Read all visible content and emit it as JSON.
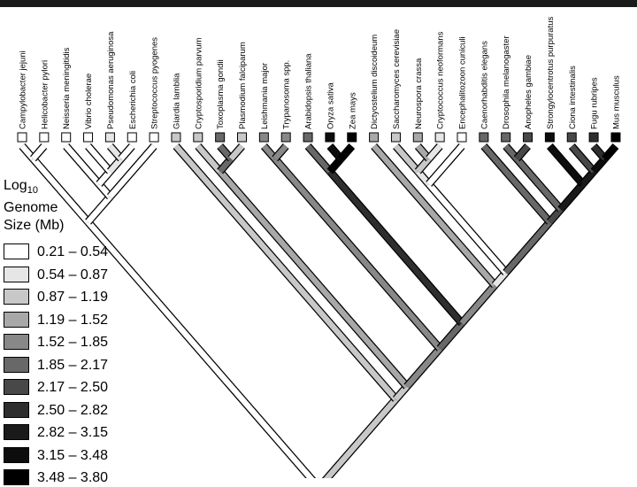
{
  "legend": {
    "title_main": "Log",
    "title_sub": "10",
    "title_line2": "Genome",
    "title_line3": "Size (Mb)",
    "bins": [
      {
        "label": "0.21 – 0.54",
        "color": "#ffffff"
      },
      {
        "label": "0.54 – 0.87",
        "color": "#e6e6e6"
      },
      {
        "label": "0.87 – 1.19",
        "color": "#c8c8c8"
      },
      {
        "label": "1.19 – 1.52",
        "color": "#a8a8a8"
      },
      {
        "label": "1.52 – 1.85",
        "color": "#888888"
      },
      {
        "label": "1.85 – 2.17",
        "color": "#686868"
      },
      {
        "label": "2.17 – 2.50",
        "color": "#484848"
      },
      {
        "label": "2.50 – 2.82",
        "color": "#2e2e2e"
      },
      {
        "label": "2.82 – 3.15",
        "color": "#1a1a1a"
      },
      {
        "label": "3.15 – 3.48",
        "color": "#0d0d0d"
      },
      {
        "label": "3.48 – 3.80",
        "color": "#000000"
      }
    ]
  },
  "taxa": [
    {
      "name": "Campylobacter jejuni",
      "bin": 0
    },
    {
      "name": "Helicobacter pylori",
      "bin": 0
    },
    {
      "name": "Neisseria meningitidis",
      "bin": 0
    },
    {
      "name": "Vibrio cholerae",
      "bin": 0
    },
    {
      "name": "Pseudomonas aeruginosa",
      "bin": 1
    },
    {
      "name": "Escherichia coli",
      "bin": 0
    },
    {
      "name": "Streptococcus pyogenes",
      "bin": 0
    },
    {
      "name": "Giardia lamblia",
      "bin": 2
    },
    {
      "name": "Cryptosporidium parvum",
      "bin": 2
    },
    {
      "name": "Toxoplasma gondii",
      "bin": 5
    },
    {
      "name": "Plasmodium falciparum",
      "bin": 2
    },
    {
      "name": "Leishmania major",
      "bin": 4
    },
    {
      "name": "Trypanosoma spp.",
      "bin": 4
    },
    {
      "name": "Arabidopsis thaliana",
      "bin": 5
    },
    {
      "name": "Oryza sativa",
      "bin": 9
    },
    {
      "name": "Zea mays",
      "bin": 10
    },
    {
      "name": "Dictyostelium discoideum",
      "bin": 3
    },
    {
      "name": "Saccharomyces cerevisiae",
      "bin": 2
    },
    {
      "name": "Neurospora crassa",
      "bin": 3
    },
    {
      "name": "Cryptococcus neoformans",
      "bin": 1
    },
    {
      "name": "Encephalitozoon cuniculi",
      "bin": 0
    },
    {
      "name": "Caenorhabditis elegans",
      "bin": 5
    },
    {
      "name": "Drosophila melanogaster",
      "bin": 5
    },
    {
      "name": "Anopheles gambiae",
      "bin": 6
    },
    {
      "name": "Strongylocentrotus purpuratus",
      "bin": 9
    },
    {
      "name": "Ciona intestinalis",
      "bin": 6
    },
    {
      "name": "Fugu rubripes",
      "bin": 7
    },
    {
      "name": "Mus musculus",
      "bin": 10
    }
  ],
  "tree": {
    "nodes": [
      {
        "id": "n1",
        "bin": 0,
        "children": [
          0,
          1
        ]
      },
      {
        "id": "n2",
        "bin": 1,
        "children": [
          4,
          5
        ]
      },
      {
        "id": "n3",
        "bin": 0,
        "children": [
          3,
          "n2"
        ]
      },
      {
        "id": "n4",
        "bin": 0,
        "children": [
          2,
          "n3"
        ]
      },
      {
        "id": "n5",
        "bin": 0,
        "children": [
          "n4",
          6
        ]
      },
      {
        "id": "n6",
        "bin": 0,
        "children": [
          "n1",
          "n5"
        ]
      },
      {
        "id": "n7",
        "bin": 5,
        "children": [
          9,
          10
        ]
      },
      {
        "id": "n8",
        "bin": 3,
        "children": [
          8,
          "n7"
        ]
      },
      {
        "id": "n9",
        "bin": 4,
        "children": [
          11,
          12
        ]
      },
      {
        "id": "n10",
        "bin": 10,
        "children": [
          14,
          15
        ]
      },
      {
        "id": "n11",
        "bin": 7,
        "children": [
          13,
          "n10"
        ]
      },
      {
        "id": "n12",
        "bin": 2,
        "children": [
          18,
          19
        ]
      },
      {
        "id": "n13",
        "bin": 1,
        "children": [
          17,
          "n12"
        ]
      },
      {
        "id": "n14",
        "bin": 0,
        "children": [
          "n13",
          20
        ]
      },
      {
        "id": "n15",
        "bin": 5,
        "children": [
          22,
          23
        ]
      },
      {
        "id": "n16",
        "bin": 9,
        "children": [
          26,
          27
        ]
      },
      {
        "id": "n17",
        "bin": 8,
        "children": [
          25,
          "n16"
        ]
      },
      {
        "id": "n18",
        "bin": 8,
        "children": [
          24,
          "n17"
        ]
      },
      {
        "id": "n19",
        "bin": 6,
        "children": [
          "n15",
          "n18"
        ]
      },
      {
        "id": "n20",
        "bin": 5,
        "children": [
          21,
          "n19"
        ]
      },
      {
        "id": "n21",
        "bin": 1,
        "children": [
          "n14",
          "n20"
        ]
      },
      {
        "id": "n22",
        "bin": 4,
        "children": [
          16,
          "n21"
        ]
      },
      {
        "id": "n23",
        "bin": 5,
        "children": [
          "n11",
          "n22"
        ]
      },
      {
        "id": "n24",
        "bin": 4,
        "children": [
          "n9",
          "n23"
        ]
      },
      {
        "id": "n25",
        "bin": 2,
        "children": [
          "n8",
          "n24"
        ]
      },
      {
        "id": "n26",
        "bin": 2,
        "children": [
          7,
          "n25"
        ]
      },
      {
        "id": "root",
        "bin": 0,
        "children": [
          "n6",
          "n26"
        ]
      }
    ]
  }
}
